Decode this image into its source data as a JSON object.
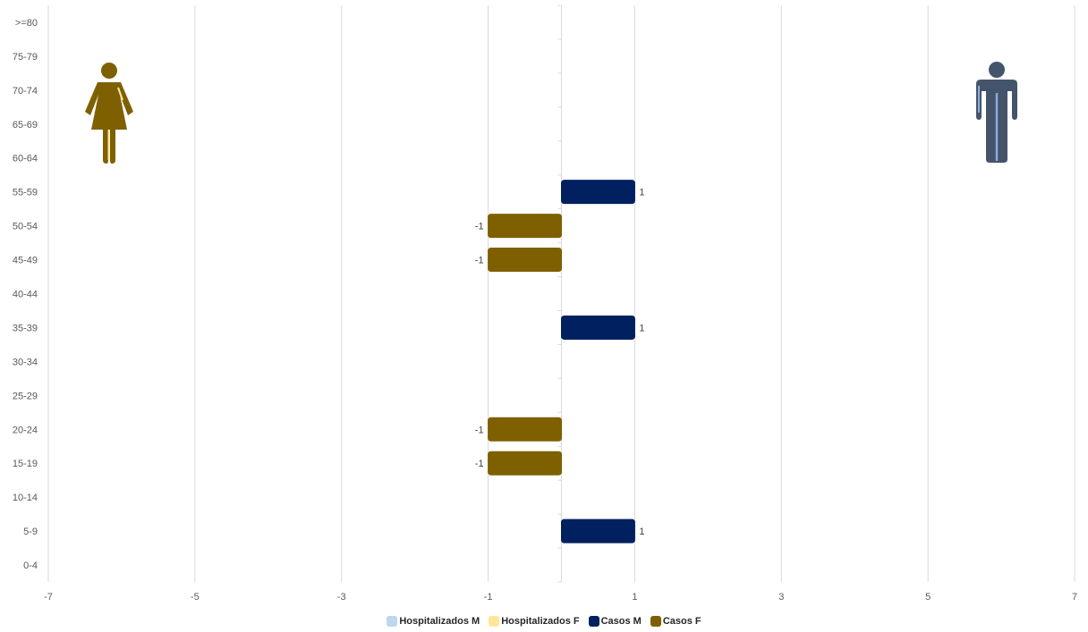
{
  "chart_data": {
    "type": "bar",
    "orientation": "horizontal",
    "categories": [
      "0-4",
      "5-9",
      "10-14",
      "15-19",
      "20-24",
      "25-29",
      "30-34",
      "35-39",
      "40-44",
      "45-49",
      "50-54",
      "55-59",
      "60-64",
      "65-69",
      "70-74",
      "75-79",
      ">=80"
    ],
    "series": [
      {
        "name": "Hospitalizados M",
        "color": "#bdd7ee",
        "values": [
          0,
          0,
          0,
          0,
          0,
          0,
          0,
          0,
          0,
          0,
          0,
          0,
          0,
          0,
          0,
          0,
          0
        ]
      },
      {
        "name": "Hospitalizados F",
        "color": "#ffe699",
        "values": [
          0,
          0,
          0,
          0,
          0,
          0,
          0,
          0,
          0,
          0,
          0,
          0,
          0,
          0,
          0,
          0,
          0
        ]
      },
      {
        "name": "Casos M",
        "color": "#002060",
        "values": [
          0,
          1,
          0,
          0,
          0,
          0,
          0,
          1,
          0,
          0,
          0,
          1,
          0,
          0,
          0,
          0,
          0
        ]
      },
      {
        "name": "Casos F",
        "color": "#7f6000",
        "values": [
          0,
          0,
          0,
          -1,
          -1,
          0,
          0,
          0,
          0,
          -1,
          -1,
          0,
          0,
          0,
          0,
          0,
          0
        ]
      }
    ],
    "xlim": [
      -7,
      7
    ],
    "xticks": [
      -7,
      -5,
      -3,
      -1,
      1,
      3,
      5,
      7
    ],
    "grid": true,
    "legend_position": "bottom",
    "data_labels": true,
    "icons": {
      "female": "woman-icon",
      "male": "man-icon",
      "female_color": "#7f6000",
      "male_color": "#44546a"
    }
  }
}
